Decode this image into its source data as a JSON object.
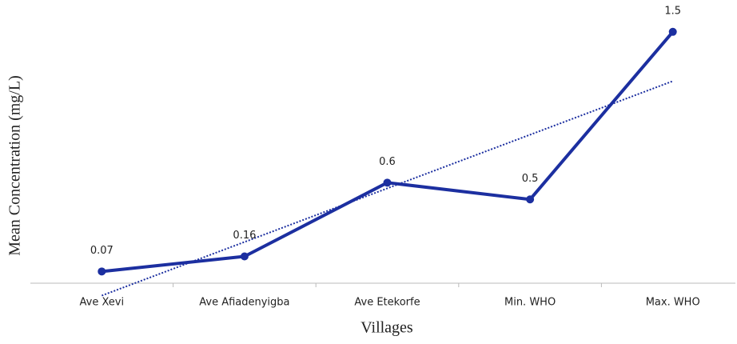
{
  "chart_data": {
    "type": "line",
    "x_label": "Villages",
    "y_label": "Mean Concentration (mg/L)",
    "categories": [
      "Ave Xevi",
      "Ave Afiadenyigba",
      "Ave Etekorfe",
      "Min. WHO",
      "Max. WHO"
    ],
    "values": [
      0.07,
      0.16,
      0.6,
      0.5,
      1.5
    ],
    "color": "#1c2fa0",
    "ylim": [
      0,
      1.69
    ],
    "trendline": "linear"
  }
}
